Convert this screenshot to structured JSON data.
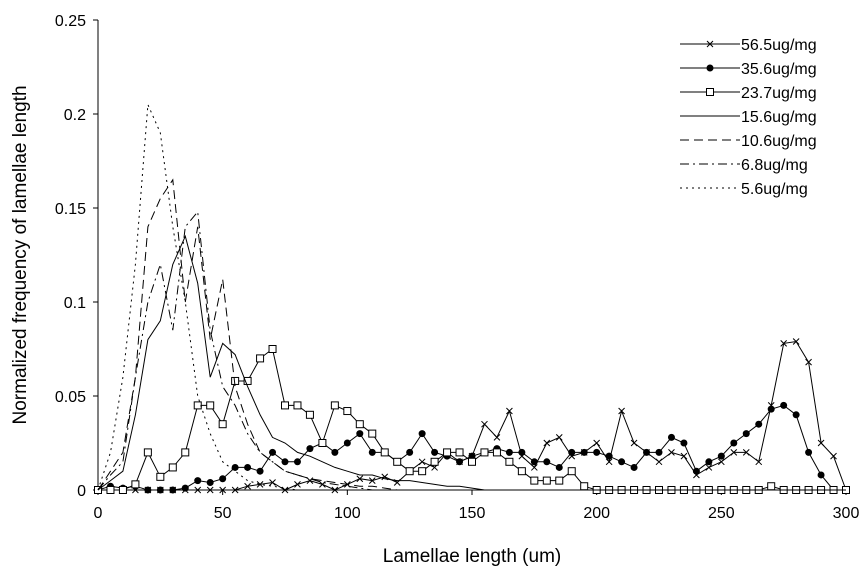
{
  "chart_data": {
    "type": "line",
    "title": "",
    "xlabel": "Lamellae length (um)",
    "ylabel": "Normalized frequency of lamellae length",
    "xlim": [
      0,
      300
    ],
    "ylim": [
      0,
      0.25
    ],
    "xticks": [
      0,
      50,
      100,
      150,
      200,
      250,
      300
    ],
    "xtick_labels": [
      "0",
      "50",
      "100",
      "150",
      "200",
      "250",
      "300"
    ],
    "yticks": [
      0,
      0.05,
      0.1,
      0.15,
      0.2,
      0.25
    ],
    "ytick_labels": [
      "0",
      "0.05",
      "0.1",
      "0.15",
      "0.2",
      "0.25"
    ],
    "grid": false,
    "legend_position": "top-right",
    "series": [
      {
        "name": "56.5ug/mg",
        "marker": "x",
        "dash": "solid",
        "x": [
          0,
          5,
          10,
          15,
          20,
          25,
          30,
          35,
          40,
          45,
          50,
          55,
          60,
          65,
          70,
          75,
          80,
          85,
          90,
          95,
          100,
          105,
          110,
          115,
          120,
          125,
          130,
          135,
          140,
          145,
          150,
          155,
          160,
          165,
          170,
          175,
          180,
          185,
          190,
          195,
          200,
          205,
          210,
          215,
          220,
          225,
          230,
          235,
          240,
          245,
          250,
          255,
          260,
          265,
          270,
          275,
          280,
          285,
          290,
          295,
          300
        ],
        "y": [
          0,
          0,
          0,
          0,
          0,
          0,
          0,
          0,
          0,
          0,
          0,
          0,
          0.002,
          0.003,
          0.004,
          0,
          0.003,
          0.005,
          0.003,
          0,
          0.003,
          0.006,
          0.005,
          0.007,
          0.004,
          0.01,
          0.015,
          0.012,
          0.02,
          0.015,
          0.018,
          0.035,
          0.028,
          0.042,
          0.018,
          0.012,
          0.025,
          0.028,
          0.018,
          0.02,
          0.025,
          0.015,
          0.042,
          0.025,
          0.02,
          0.015,
          0.02,
          0.018,
          0.008,
          0.012,
          0.015,
          0.02,
          0.02,
          0.015,
          0.045,
          0.078,
          0.079,
          0.068,
          0.025,
          0.018,
          0
        ]
      },
      {
        "name": "35.6ug/mg",
        "marker": "filled-circle",
        "dash": "solid",
        "x": [
          0,
          5,
          10,
          15,
          20,
          25,
          30,
          35,
          40,
          45,
          50,
          55,
          60,
          65,
          70,
          75,
          80,
          85,
          90,
          95,
          100,
          105,
          110,
          115,
          120,
          125,
          130,
          135,
          140,
          145,
          150,
          155,
          160,
          165,
          170,
          175,
          180,
          185,
          190,
          195,
          200,
          205,
          210,
          215,
          220,
          225,
          230,
          235,
          240,
          245,
          250,
          255,
          260,
          265,
          270,
          275,
          280,
          285,
          290,
          295,
          300
        ],
        "y": [
          0,
          0.002,
          0.001,
          0.002,
          0,
          0,
          0,
          0.001,
          0.005,
          0.004,
          0.006,
          0.012,
          0.012,
          0.01,
          0.02,
          0.015,
          0.015,
          0.022,
          0.025,
          0.02,
          0.025,
          0.03,
          0.02,
          0.02,
          0.015,
          0.02,
          0.03,
          0.02,
          0.018,
          0.015,
          0.018,
          0.02,
          0.022,
          0.02,
          0.02,
          0.015,
          0.015,
          0.012,
          0.02,
          0.02,
          0.02,
          0.018,
          0.015,
          0.012,
          0.02,
          0.02,
          0.028,
          0.025,
          0.01,
          0.015,
          0.018,
          0.025,
          0.03,
          0.035,
          0.043,
          0.045,
          0.04,
          0.02,
          0.008,
          0,
          0
        ]
      },
      {
        "name": "23.7ug/mg",
        "marker": "open-square",
        "dash": "solid",
        "x": [
          0,
          5,
          10,
          15,
          20,
          25,
          30,
          35,
          40,
          45,
          50,
          55,
          60,
          65,
          70,
          75,
          80,
          85,
          90,
          95,
          100,
          105,
          110,
          115,
          120,
          125,
          130,
          135,
          140,
          145,
          150,
          155,
          160,
          165,
          170,
          175,
          180,
          185,
          190,
          195,
          200,
          205,
          210,
          215,
          220,
          225,
          230,
          235,
          240,
          245,
          250,
          255,
          260,
          265,
          270,
          275,
          280,
          285,
          290,
          295,
          300
        ],
        "y": [
          0,
          0,
          0,
          0.003,
          0.02,
          0.007,
          0.012,
          0.02,
          0.045,
          0.045,
          0.035,
          0.058,
          0.058,
          0.07,
          0.075,
          0.045,
          0.045,
          0.04,
          0.025,
          0.045,
          0.042,
          0.035,
          0.03,
          0.02,
          0.015,
          0.01,
          0.01,
          0.015,
          0.02,
          0.02,
          0.015,
          0.02,
          0.02,
          0.015,
          0.01,
          0.005,
          0.005,
          0.005,
          0.01,
          0.002,
          0,
          0,
          0,
          0,
          0,
          0,
          0,
          0,
          0,
          0,
          0,
          0,
          0,
          0,
          0.002,
          0,
          0,
          0,
          0,
          0,
          0
        ]
      },
      {
        "name": "15.6ug/mg",
        "marker": "none",
        "dash": "solid",
        "x": [
          0,
          5,
          10,
          15,
          20,
          25,
          30,
          35,
          40,
          45,
          50,
          55,
          60,
          65,
          70,
          75,
          80,
          85,
          90,
          95,
          100,
          105,
          110,
          115,
          120,
          125,
          130,
          135,
          140,
          145,
          150,
          155,
          160,
          165,
          170,
          175,
          180,
          185,
          190,
          195,
          200,
          205,
          210,
          215,
          220,
          225,
          230,
          235,
          240,
          245,
          250,
          255,
          260,
          265,
          270,
          275,
          280,
          285,
          290,
          295,
          300
        ],
        "y": [
          0,
          0.005,
          0.01,
          0.04,
          0.08,
          0.09,
          0.12,
          0.135,
          0.11,
          0.06,
          0.078,
          0.072,
          0.055,
          0.04,
          0.028,
          0.025,
          0.02,
          0.018,
          0.015,
          0.012,
          0.01,
          0.008,
          0.008,
          0.006,
          0.005,
          0.005,
          0.004,
          0.003,
          0.002,
          0.002,
          0.001,
          0,
          0,
          0,
          0,
          0,
          0,
          0,
          0,
          0,
          0,
          0,
          0,
          0,
          0,
          0,
          0,
          0,
          0,
          0,
          0,
          0,
          0,
          0,
          0,
          0,
          0,
          0,
          0,
          0,
          0
        ]
      },
      {
        "name": "10.6ug/mg",
        "marker": "none",
        "dash": "dash",
        "x": [
          0,
          5,
          10,
          15,
          20,
          25,
          30,
          35,
          40,
          45,
          50,
          55,
          60,
          65,
          70,
          75,
          80,
          85,
          90,
          95,
          100,
          105,
          110,
          115,
          120,
          125,
          130,
          135,
          140,
          145,
          150,
          155,
          160,
          165,
          170,
          175,
          180,
          185,
          190,
          195,
          200,
          205,
          210,
          215,
          220,
          225,
          230,
          235,
          240,
          245,
          250,
          255,
          260,
          265,
          270,
          275,
          280,
          285,
          290,
          295,
          300
        ],
        "y": [
          0,
          0.01,
          0.02,
          0.06,
          0.14,
          0.155,
          0.165,
          0.1,
          0.14,
          0.08,
          0.112,
          0.055,
          0.035,
          0.02,
          0.015,
          0.01,
          0.008,
          0.006,
          0.005,
          0.004,
          0.003,
          0.002,
          0.002,
          0.001,
          0,
          0,
          0,
          0,
          0,
          0,
          0,
          0,
          0,
          0,
          0,
          0,
          0,
          0,
          0,
          0,
          0,
          0,
          0,
          0,
          0,
          0,
          0,
          0,
          0,
          0,
          0,
          0,
          0,
          0,
          0,
          0,
          0,
          0,
          0,
          0,
          0
        ]
      },
      {
        "name": "6.8ug/mg",
        "marker": "none",
        "dash": "dashdot",
        "x": [
          0,
          5,
          10,
          15,
          20,
          25,
          30,
          35,
          40,
          45,
          50,
          55,
          60,
          65,
          70,
          75,
          80,
          85,
          90,
          95,
          100,
          105,
          110,
          115,
          120,
          125,
          130,
          135,
          140,
          145,
          150,
          155,
          160,
          165,
          170,
          175,
          180,
          185,
          190,
          195,
          200,
          205,
          210,
          215,
          220,
          225,
          230,
          235,
          240,
          245,
          250,
          255,
          260,
          265,
          270,
          275,
          280,
          285,
          290,
          295,
          300
        ],
        "y": [
          0,
          0.008,
          0.015,
          0.06,
          0.1,
          0.12,
          0.085,
          0.14,
          0.148,
          0.085,
          0.055,
          0.045,
          0.03,
          0.02,
          0.015,
          0.01,
          0.008,
          0.006,
          0.004,
          0.003,
          0.002,
          0.001,
          0,
          0,
          0,
          0,
          0,
          0,
          0,
          0,
          0,
          0,
          0,
          0,
          0,
          0,
          0,
          0,
          0,
          0,
          0,
          0,
          0,
          0,
          0,
          0,
          0,
          0,
          0,
          0,
          0,
          0,
          0,
          0,
          0,
          0,
          0,
          0,
          0,
          0,
          0
        ]
      },
      {
        "name": "5.6ug/mg",
        "marker": "none",
        "dash": "dot",
        "x": [
          0,
          5,
          10,
          15,
          20,
          25,
          30,
          35,
          40,
          45,
          50,
          55,
          60,
          65,
          70,
          75,
          80,
          85,
          90,
          95,
          100,
          105,
          110,
          115,
          120,
          125,
          130,
          135,
          140,
          145,
          150,
          155,
          160,
          165,
          170,
          175,
          180,
          185,
          190,
          195,
          200,
          205,
          210,
          215,
          220,
          225,
          230,
          235,
          240,
          245,
          250,
          255,
          260,
          265,
          270,
          275,
          280,
          285,
          290,
          295,
          300
        ],
        "y": [
          0,
          0.02,
          0.06,
          0.12,
          0.205,
          0.19,
          0.14,
          0.1,
          0.05,
          0.03,
          0.015,
          0.01,
          0.005,
          0.003,
          0.002,
          0.001,
          0,
          0,
          0,
          0,
          0,
          0,
          0,
          0,
          0,
          0,
          0,
          0,
          0,
          0,
          0,
          0,
          0,
          0,
          0,
          0,
          0,
          0,
          0,
          0,
          0,
          0,
          0,
          0,
          0,
          0,
          0,
          0,
          0,
          0,
          0,
          0,
          0,
          0,
          0,
          0,
          0,
          0,
          0,
          0,
          0
        ]
      }
    ]
  }
}
